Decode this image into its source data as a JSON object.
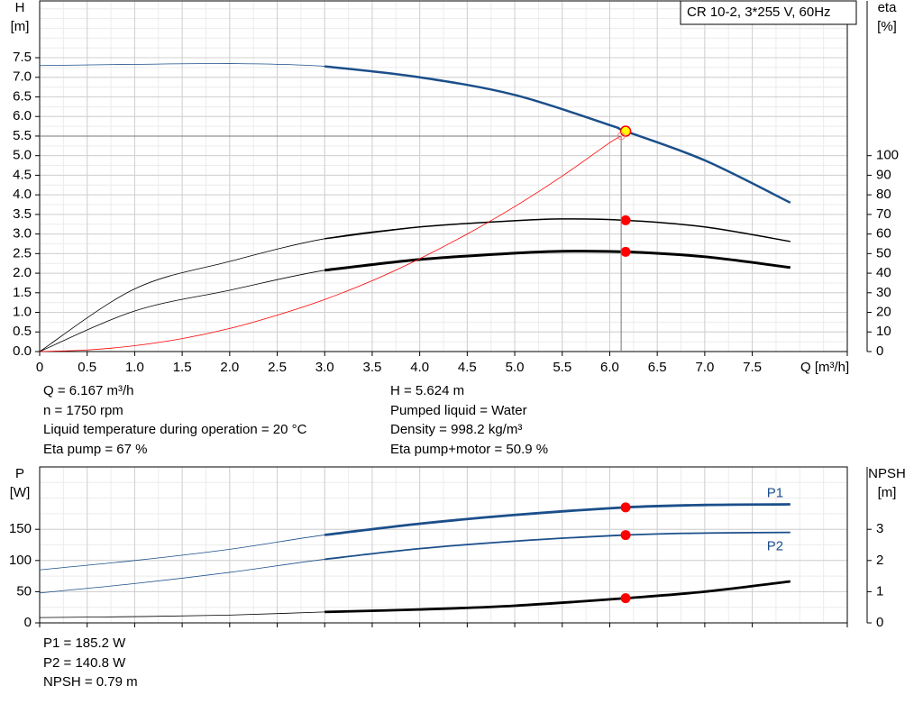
{
  "chart_data": [
    {
      "type": "line",
      "title": "CR 10-2, 3*255 V, 60Hz",
      "x_label": "Q [m³/h]",
      "y_label": [
        "H",
        "[m]"
      ],
      "y2_label": [
        "eta",
        "[%]"
      ],
      "xlim": [
        0,
        8.5
      ],
      "xticks": [
        0,
        0.5,
        {
          "value": 1,
          "label": "1.0"
        },
        1.5,
        {
          "value": 2,
          "label": "2.0"
        },
        2.5,
        {
          "value": 3,
          "label": "3.0"
        },
        3.5,
        {
          "value": 4,
          "label": "4.0"
        },
        4.5,
        {
          "value": 5,
          "label": "5.0"
        },
        5.5,
        {
          "value": 6,
          "label": "6.0"
        },
        6.5,
        {
          "value": 7,
          "label": "7.0"
        },
        7.5
      ],
      "ylim": [
        0,
        8.95
      ],
      "yticks": [
        {
          "value": 0,
          "label": "0.0"
        },
        0.5,
        {
          "value": 1,
          "label": "1.0"
        },
        1.5,
        {
          "value": 2,
          "label": "2.0"
        },
        2.5,
        {
          "value": 3,
          "label": "3.0"
        },
        3.5,
        {
          "value": 4,
          "label": "4.0"
        },
        4.5,
        {
          "value": 5,
          "label": "5.0"
        },
        5.5,
        {
          "value": 6,
          "label": "6.0"
        },
        6.5,
        {
          "value": 7,
          "label": "7.0"
        },
        7.5
      ],
      "y2lim": [
        0,
        179
      ],
      "y2ticks": [
        0,
        10,
        20,
        30,
        40,
        50,
        60,
        70,
        80,
        90,
        100
      ],
      "grid": true,
      "thick_from": 3,
      "operating_q": 6.167,
      "series": [
        {
          "color": "#1b4f8a",
          "marker_color": "#ffff00",
          "x": [
            0,
            1,
            2,
            3,
            4,
            5,
            6,
            6.167,
            7,
            7.9
          ],
          "values": [
            7.3,
            7.33,
            7.35,
            7.28,
            7.0,
            6.55,
            5.78,
            5.624,
            4.88,
            3.8
          ]
        },
        {
          "color": "#000000",
          "marker_color": "#ff0000",
          "axis": "y2",
          "x": [
            0,
            1,
            2,
            3,
            4,
            5,
            5.5,
            6.167,
            7,
            7.9
          ],
          "values": [
            0,
            32,
            46,
            57.6,
            63.6,
            66.8,
            67.7,
            67,
            63.6,
            56.2
          ]
        },
        {
          "color": "#000000",
          "marker_color": "#ff0000",
          "axis": "y2",
          "x": [
            0,
            1,
            2,
            3,
            4,
            5,
            5.5,
            6.167,
            7,
            7.9
          ],
          "values": [
            0,
            20.7,
            31.3,
            41.5,
            47,
            50.2,
            51.2,
            50.9,
            48.4,
            42.9
          ]
        },
        {
          "color": "#ff0000",
          "system": true,
          "x": [
            0,
            0.5,
            1,
            1.5,
            2,
            2.5,
            3,
            3.5,
            4,
            4.5,
            5,
            5.5,
            6,
            6.12
          ],
          "values": [
            0,
            0.04,
            0.15,
            0.33,
            0.59,
            0.93,
            1.33,
            1.81,
            2.37,
            3.0,
            3.7,
            4.48,
            5.33,
            5.5
          ]
        }
      ]
    },
    {
      "type": "line",
      "y_label": [
        "P",
        "[W]"
      ],
      "y2_label": [
        "NPSH",
        "[m]"
      ],
      "xlim": [
        0,
        8.5
      ],
      "ylim": [
        0,
        250
      ],
      "yticks": [
        0,
        50,
        100,
        150
      ],
      "y2lim": [
        0,
        5
      ],
      "y2ticks": [
        0,
        1,
        2,
        3
      ],
      "grid": true,
      "thick_from": 3,
      "operating_q": 6.167,
      "series": [
        {
          "name": "P1",
          "color": "#1b4f8a",
          "marker_color": "#ff0000",
          "x": [
            0,
            1,
            2,
            3,
            4,
            5,
            6.167,
            7,
            7.9
          ],
          "values": [
            85,
            100,
            118,
            141,
            159,
            173,
            185.2,
            189,
            190
          ]
        },
        {
          "name": "P2",
          "color": "#1b4f8a",
          "marker_color": "#ff0000",
          "x": [
            0,
            1,
            2,
            3,
            4,
            5,
            6.167,
            7,
            7.9
          ],
          "values": [
            48,
            63,
            81,
            102,
            119,
            131,
            140.8,
            144,
            145
          ]
        },
        {
          "color": "#000000",
          "marker_color": "#ff0000",
          "axis": "y2",
          "x": [
            0,
            1,
            2,
            3,
            4,
            5,
            6.167,
            7,
            7.9
          ],
          "values": [
            0.17,
            0.2,
            0.25,
            0.35,
            0.43,
            0.55,
            0.79,
            1.0,
            1.33
          ]
        }
      ]
    }
  ],
  "info_left": [
    "Q = 6.167 m³/h",
    "n = 1750 rpm",
    "Liquid temperature during operation = 20 °C",
    "Eta pump = 67 %"
  ],
  "info_right": [
    "H = 5.624 m",
    "Pumped liquid = Water",
    "Density = 998.2 kg/m³",
    "Eta pump+motor = 50.9 %"
  ],
  "info_bottom": [
    "P1 = 185.2 W",
    "P2 = 140.8 W",
    "NPSH = 0.79 m"
  ]
}
